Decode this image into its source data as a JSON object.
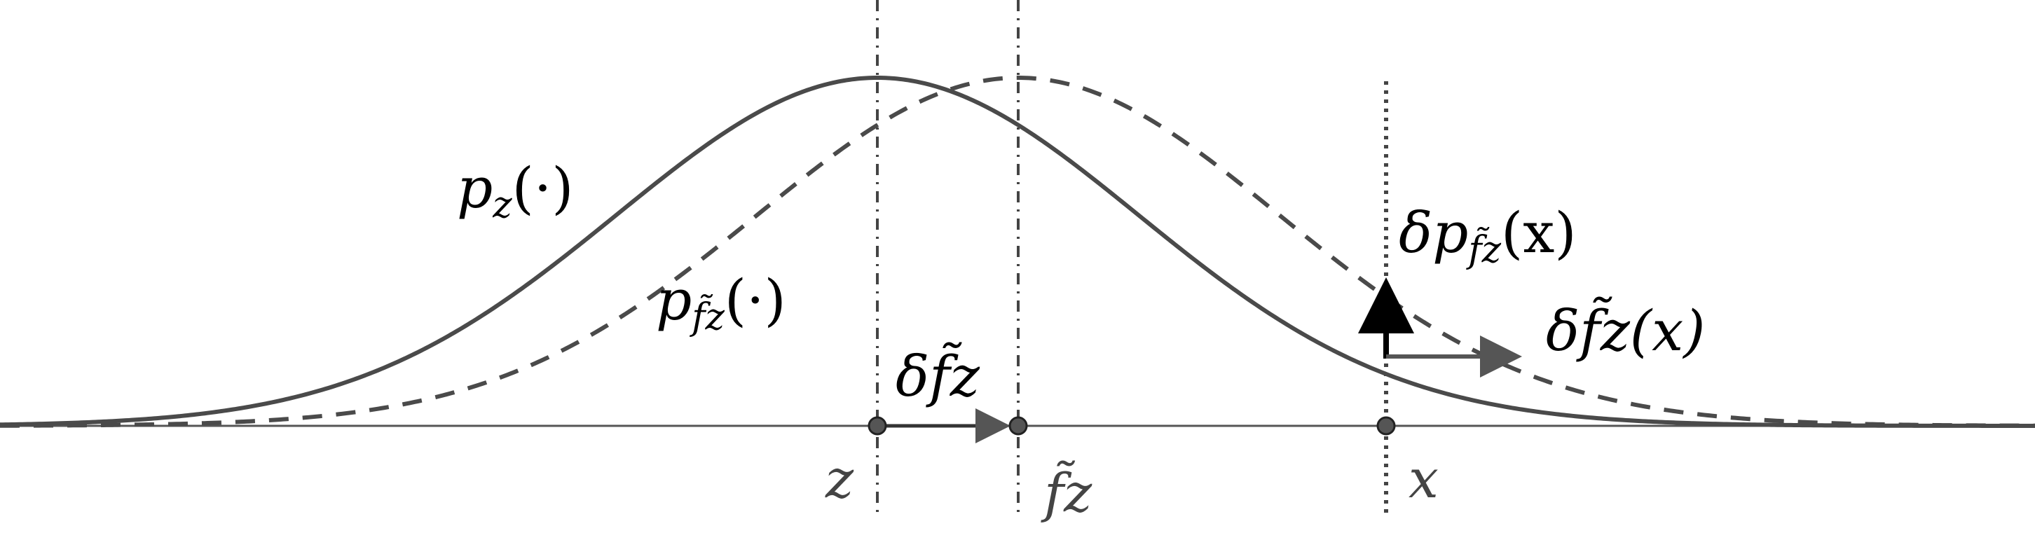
{
  "curves": {
    "solid_label": "p",
    "solid_sub": "z",
    "solid_arg": "(·)",
    "dashed_label": "p",
    "dashed_sub": "f̃z",
    "dashed_arg": "(·)"
  },
  "axis_points": {
    "z_label": "z",
    "fz_label": "f̃z",
    "x_label": "x"
  },
  "arrows": {
    "shift_label": "δf̃z",
    "delta_p_prefix": "δp",
    "delta_p_sub": "f̃z",
    "delta_p_arg": "(x)",
    "delta_fz_label": "δf̃z(x)"
  },
  "colors": {
    "curve": "#4a4a4a",
    "axis": "#555555",
    "arrow": "#000000",
    "point_fill": "#555555"
  }
}
